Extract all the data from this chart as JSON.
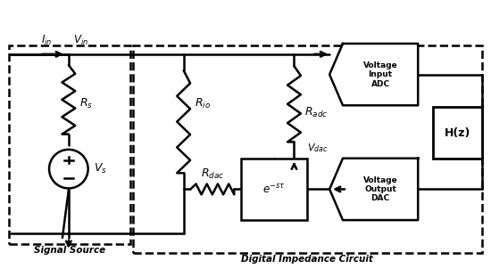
{
  "fig_width": 5.5,
  "fig_height": 3.02,
  "dpi": 100,
  "bg_color": "#ffffff",
  "line_color": "#000000",
  "label_signal_source": "Signal Source",
  "label_digital": "Digital Impedance Circuit",
  "label_Iin": "$I_{in}$",
  "label_Vin": "$V_{in}$",
  "label_Rs": "$R_s$",
  "label_Vs": "$V_s$",
  "label_Rio": "$R_{io}$",
  "label_Radc": "$R_{adc}$",
  "label_Rdac": "$R_{dac}$",
  "label_Vdac": "$V_{dac}$",
  "label_exp": "$e^{-s\\tau}$",
  "label_Hz": "H(z)",
  "label_adc": "Voltage\nInput\nADC",
  "label_dac": "Voltage\nOutput\nDAC"
}
